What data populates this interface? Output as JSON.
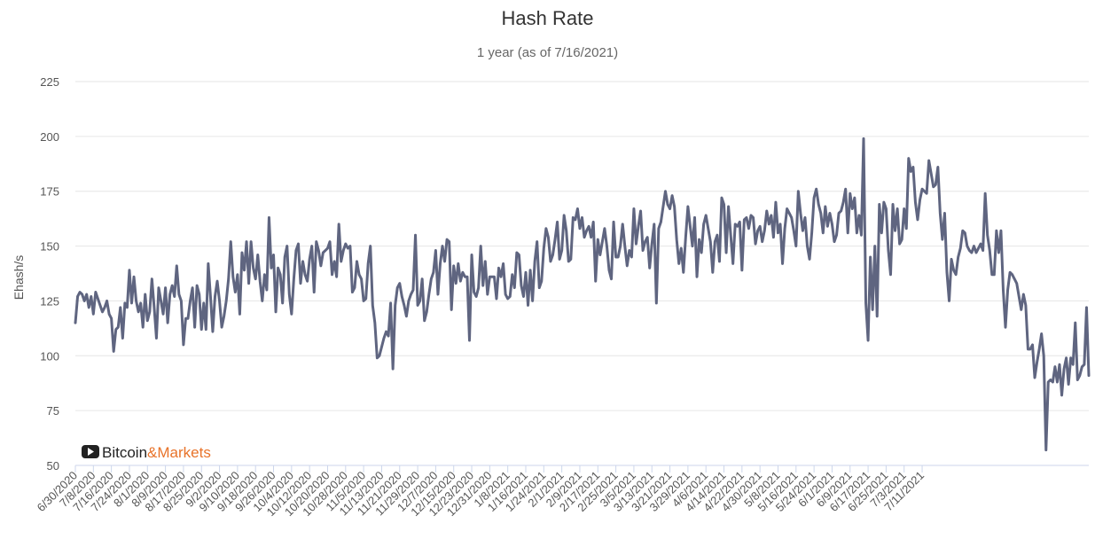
{
  "chart_data": {
    "type": "line",
    "title": "Hash Rate",
    "subtitle": "1 year (as of 7/16/2021)",
    "ylabel": "Ehash/s",
    "xlabel": "",
    "ylim": [
      50,
      225
    ],
    "yticks": [
      50,
      75,
      100,
      125,
      150,
      175,
      200,
      225
    ],
    "grid": true,
    "legend": "none",
    "line_color": "#5f6580",
    "x_start": "6/30/2020",
    "x_end": "7/16/2021",
    "xtick_labels": [
      "6/30/2020",
      "7/8/2020",
      "7/16/2020",
      "7/24/2020",
      "8/1/2020",
      "8/9/2020",
      "8/17/2020",
      "8/25/2020",
      "9/2/2020",
      "9/10/2020",
      "9/18/2020",
      "9/26/2020",
      "10/4/2020",
      "10/12/2020",
      "10/20/2020",
      "10/28/2020",
      "11/5/2020",
      "11/13/2020",
      "11/21/2020",
      "11/29/2020",
      "12/7/2020",
      "12/15/2020",
      "12/23/2020",
      "12/31/2020",
      "1/8/2021",
      "1/16/2021",
      "1/24/2021",
      "2/1/2021",
      "2/9/2021",
      "2/17/2021",
      "2/25/2021",
      "3/5/2021",
      "3/13/2021",
      "3/21/2021",
      "3/29/2021",
      "4/6/2021",
      "4/14/2021",
      "4/22/2021",
      "4/30/2021",
      "5/8/2021",
      "5/16/2021",
      "5/24/2021",
      "6/1/2021",
      "6/9/2021",
      "6/17/2021",
      "6/25/2021",
      "7/3/2021",
      "7/11/2021"
    ],
    "series": [
      {
        "values": [
          115,
          127,
          129,
          128,
          125,
          128,
          122,
          127,
          119,
          129,
          126,
          123,
          120,
          122,
          125,
          119,
          117,
          102,
          112,
          113,
          122,
          108,
          124,
          122,
          139,
          124,
          136,
          125,
          120,
          124,
          113,
          128,
          116,
          120,
          135,
          122,
          108,
          131,
          125,
          119,
          131,
          115,
          128,
          132,
          127,
          141,
          128,
          125,
          105,
          117,
          117,
          125,
          131,
          113,
          132,
          128,
          112,
          124,
          112,
          142,
          127,
          111,
          127,
          134,
          125,
          113,
          118,
          125,
          135,
          152,
          136,
          129,
          137,
          119,
          147,
          139,
          152,
          133,
          152,
          140,
          135,
          146,
          134,
          125,
          137,
          130,
          163,
          140,
          146,
          120,
          140,
          137,
          124,
          145,
          150,
          128,
          119,
          135,
          148,
          151,
          133,
          143,
          137,
          134,
          144,
          150,
          129,
          152,
          148,
          141,
          147,
          148,
          149,
          152,
          137,
          143,
          136,
          160,
          143,
          148,
          151,
          149,
          150,
          129,
          131,
          143,
          137,
          135,
          125,
          126,
          142,
          150,
          123,
          115,
          99,
          100,
          104,
          108,
          111,
          109,
          124,
          94,
          123,
          131,
          133,
          127,
          123,
          118,
          125,
          128,
          130,
          155,
          123,
          125,
          135,
          116,
          120,
          128,
          135,
          138,
          148,
          128,
          142,
          150,
          143,
          153,
          152,
          121,
          141,
          133,
          142,
          134,
          138,
          136,
          136,
          107,
          146,
          129,
          127,
          131,
          150,
          132,
          143,
          128,
          136,
          136,
          136,
          126,
          140,
          136,
          142,
          128,
          126,
          127,
          137,
          131,
          147,
          146,
          132,
          127,
          138,
          123,
          139,
          125,
          143,
          152,
          131,
          134,
          149,
          158,
          154,
          143,
          146,
          153,
          161,
          144,
          148,
          164,
          157,
          143,
          144,
          163,
          162,
          167,
          158,
          163,
          154,
          157,
          159,
          154,
          161,
          134,
          153,
          146,
          152,
          158,
          150,
          139,
          135,
          161,
          145,
          145,
          150,
          160,
          150,
          141,
          148,
          145,
          167,
          151,
          159,
          166,
          148,
          152,
          154,
          140,
          151,
          160,
          124,
          158,
          161,
          168,
          175,
          169,
          167,
          173,
          168,
          153,
          142,
          149,
          138,
          154,
          168,
          159,
          150,
          163,
          136,
          153,
          147,
          160,
          164,
          158,
          152,
          138,
          152,
          155,
          143,
          172,
          169,
          147,
          168,
          155,
          142,
          160,
          159,
          161,
          139,
          162,
          163,
          158,
          164,
          163,
          151,
          157,
          159,
          152,
          157,
          166,
          160,
          164,
          154,
          170,
          156,
          160,
          142,
          158,
          167,
          165,
          163,
          157,
          150,
          175,
          165,
          157,
          163,
          150,
          144,
          156,
          172,
          176,
          169,
          165,
          156,
          168,
          159,
          165,
          160,
          152,
          155,
          165,
          166,
          170,
          176,
          156,
          174,
          167,
          172,
          156,
          164,
          155,
          199,
          124,
          107,
          145,
          121,
          150,
          118,
          169,
          156,
          170,
          167,
          148,
          137,
          169,
          157,
          167,
          151,
          153,
          167,
          158,
          190,
          184,
          186,
          170,
          162,
          171,
          176,
          175,
          174,
          189,
          183,
          177,
          178,
          186,
          165,
          153,
          165,
          138,
          125,
          144,
          139,
          137,
          145,
          149,
          157,
          156,
          150,
          148,
          147,
          150,
          147,
          149,
          151,
          148,
          174,
          155,
          148,
          137,
          137,
          157,
          147,
          157,
          130,
          113,
          130,
          138,
          137,
          135,
          133,
          127,
          121,
          128,
          123,
          103,
          103,
          105,
          90,
          97,
          103,
          110,
          100,
          57,
          88,
          89,
          88,
          95,
          88,
          96,
          82,
          94,
          99,
          87,
          99,
          96,
          115,
          89,
          91,
          95,
          96,
          122,
          91
        ]
      }
    ]
  },
  "watermark": {
    "icon": "play-icon",
    "text_dark": "Bitcoin",
    "text_accent": "&Markets",
    "accent_color": "#e8732a"
  }
}
